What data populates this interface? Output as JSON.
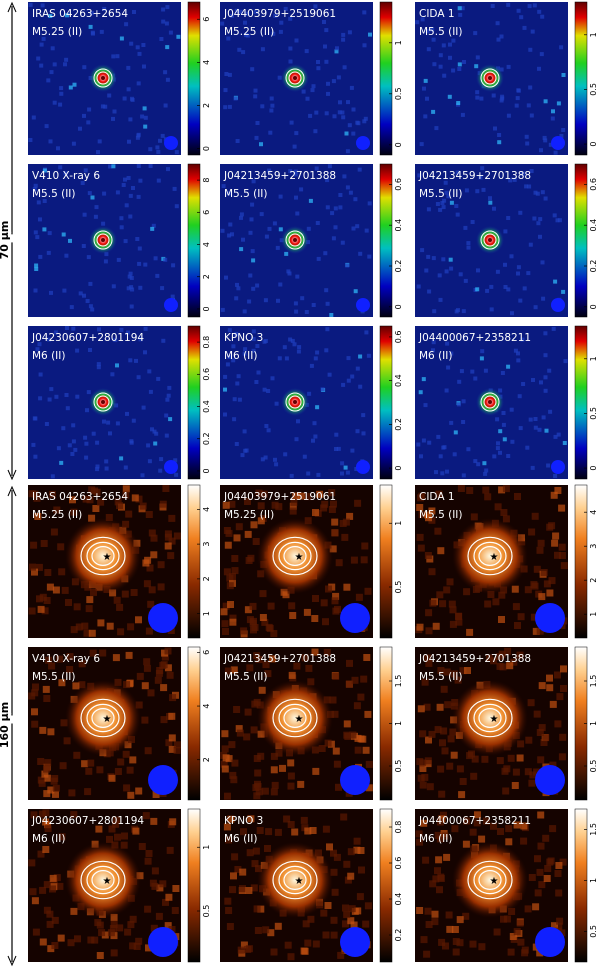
{
  "bands": [
    {
      "label": "70 µm",
      "panels": [
        {
          "name": "IRAS 04263+2654",
          "spt": "M5.25 (II)",
          "cbar_ticks": [
            0,
            2,
            4,
            6
          ],
          "cbar_lim": [
            -0.3,
            6.8
          ]
        },
        {
          "name": "J04403979+2519061",
          "spt": "M5.25 (II)",
          "cbar_ticks": [
            0,
            0.5,
            1
          ],
          "cbar_lim": [
            -0.1,
            1.4
          ]
        },
        {
          "name": "CIDA 1",
          "spt": "M5.5 (II)",
          "cbar_ticks": [
            0,
            0.5,
            1
          ],
          "cbar_lim": [
            -0.1,
            1.3
          ]
        },
        {
          "name": "V410 X-ray 6",
          "spt": "M5.5 (II)",
          "cbar_ticks": [
            0,
            2,
            4,
            6,
            8
          ],
          "cbar_lim": [
            -0.5,
            9
          ]
        },
        {
          "name": "J04213459+2701388",
          "spt": "M5.5 (II)",
          "cbar_ticks": [
            0,
            0.2,
            0.4,
            0.6
          ],
          "cbar_lim": [
            -0.05,
            0.7
          ]
        },
        {
          "name": "J04213459+2701388",
          "spt": "M5.5 (II)",
          "cbar_ticks": [
            0,
            0.2,
            0.4,
            0.6
          ],
          "cbar_lim": [
            -0.05,
            0.7
          ]
        },
        {
          "name": "J04230607+2801194",
          "spt": "M6 (II)",
          "cbar_ticks": [
            0,
            0.2,
            0.4,
            0.6,
            0.8
          ],
          "cbar_lim": [
            -0.05,
            0.9
          ]
        },
        {
          "name": "KPNO 3",
          "spt": "M6 (II)",
          "cbar_ticks": [
            0,
            0.2,
            0.4,
            0.6
          ],
          "cbar_lim": [
            -0.05,
            0.65
          ]
        },
        {
          "name": "J04400067+2358211",
          "spt": "M6 (II)",
          "cbar_ticks": [
            0,
            0.5,
            1
          ],
          "cbar_lim": [
            -0.1,
            1.3
          ]
        }
      ]
    },
    {
      "label": "160 µm",
      "panels": [
        {
          "name": "IRAS 04263+2654",
          "spt": "M5.25 (II)",
          "cbar_ticks": [
            1,
            2,
            3,
            4
          ],
          "cbar_lim": [
            0.3,
            4.7
          ]
        },
        {
          "name": "J04403979+2519061",
          "spt": "M5.25 (II)",
          "cbar_ticks": [
            0.5,
            1
          ],
          "cbar_lim": [
            0.1,
            1.3
          ]
        },
        {
          "name": "CIDA 1",
          "spt": "M5.5 (II)",
          "cbar_ticks": [
            1,
            2,
            3,
            4
          ],
          "cbar_lim": [
            0.3,
            4.8
          ]
        },
        {
          "name": "V410 X-ray 6",
          "spt": "M5.5 (II)",
          "cbar_ticks": [
            2,
            4,
            6
          ],
          "cbar_lim": [
            0.5,
            6.2
          ]
        },
        {
          "name": "J04213459+2701388",
          "spt": "M5.5 (II)",
          "cbar_ticks": [
            0.5,
            1,
            1.5
          ],
          "cbar_lim": [
            0.1,
            1.9
          ]
        },
        {
          "name": "J04213459+2701388",
          "spt": "M5.5 (II)",
          "cbar_ticks": [
            0.5,
            1,
            1.5
          ],
          "cbar_lim": [
            0.1,
            1.9
          ]
        },
        {
          "name": "J04230607+2801194",
          "spt": "M6 (II)",
          "cbar_ticks": [
            0.5,
            1
          ],
          "cbar_lim": [
            0.1,
            1.3
          ]
        },
        {
          "name": "KPNO 3",
          "spt": "M6 (II)",
          "cbar_ticks": [
            0.2,
            0.4,
            0.6,
            0.8
          ],
          "cbar_lim": [
            0.05,
            0.9
          ]
        },
        {
          "name": "J04400067+2358211",
          "spt": "M6 (II)",
          "cbar_ticks": [
            0.5,
            1,
            1.5
          ],
          "cbar_lim": [
            0.2,
            1.7
          ]
        }
      ]
    }
  ]
}
